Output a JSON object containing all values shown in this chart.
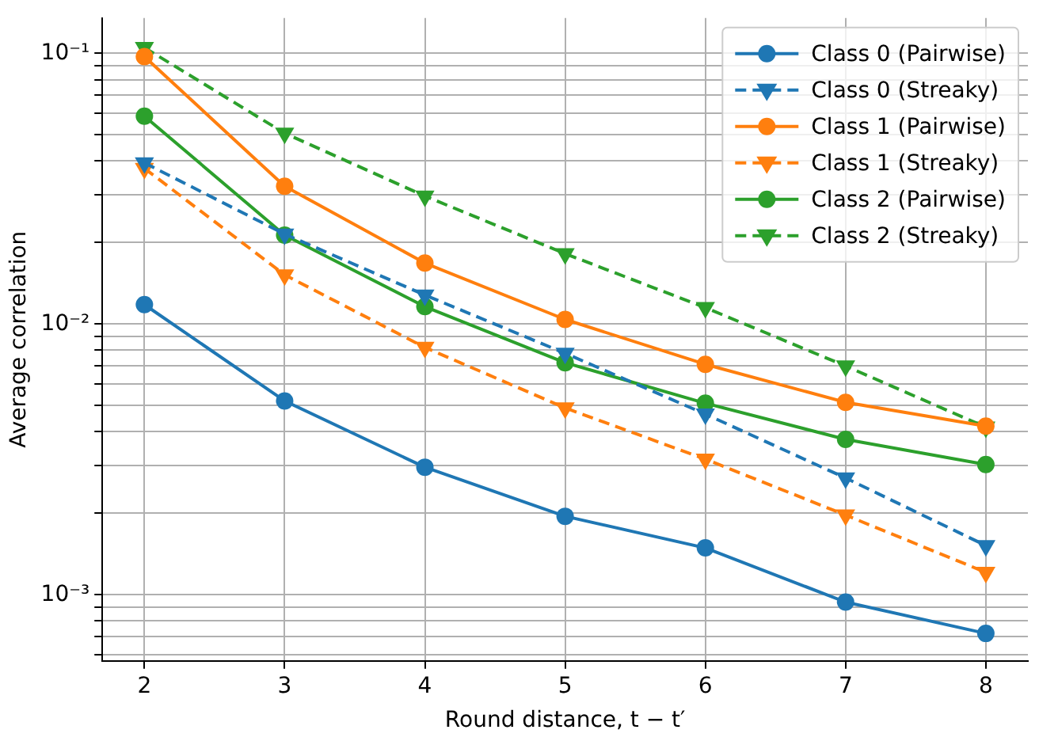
{
  "chart_data": {
    "type": "line",
    "xlabel": "Round distance, t − t′",
    "ylabel": "Average correlation",
    "log": "y",
    "grid": true,
    "legend": "top right",
    "x": [
      2,
      3,
      4,
      5,
      6,
      7,
      8
    ],
    "xlim": [
      1.7,
      8.3
    ],
    "xticks": [
      2,
      3,
      4,
      5,
      6,
      7,
      8
    ],
    "ylim": [
      0.00057,
      0.135
    ],
    "yticks": [
      {
        "value": 0.0006,
        "label": null
      },
      {
        "value": 0.0007,
        "label": null
      },
      {
        "value": 0.0008,
        "label": null
      },
      {
        "value": 0.0009,
        "label": null
      },
      {
        "value": 0.001,
        "label": "10⁻³"
      },
      {
        "value": 0.002,
        "label": null
      },
      {
        "value": 0.003,
        "label": null
      },
      {
        "value": 0.004,
        "label": null
      },
      {
        "value": 0.005,
        "label": null
      },
      {
        "value": 0.006,
        "label": null
      },
      {
        "value": 0.007,
        "label": null
      },
      {
        "value": 0.008,
        "label": null
      },
      {
        "value": 0.009,
        "label": null
      },
      {
        "value": 0.01,
        "label": "10⁻²"
      },
      {
        "value": 0.02,
        "label": null
      },
      {
        "value": 0.03,
        "label": null
      },
      {
        "value": 0.04,
        "label": null
      },
      {
        "value": 0.05,
        "label": null
      },
      {
        "value": 0.06,
        "label": null
      },
      {
        "value": 0.07,
        "label": null
      },
      {
        "value": 0.08,
        "label": null
      },
      {
        "value": 0.09,
        "label": null
      },
      {
        "value": 0.1,
        "label": "10⁻¹"
      }
    ],
    "series": [
      {
        "name": "Class 0 (Pairwise)",
        "color": "#1f77b4",
        "marker": "circle",
        "line_style": "solid",
        "values": [
          0.0118,
          0.0052,
          0.00296,
          0.00195,
          0.00149,
          0.00094,
          0.00072
        ]
      },
      {
        "name": "Class 0 (Streaky)",
        "color": "#1f77b4",
        "marker": "triangle",
        "line_style": "dashed",
        "values": [
          0.0394,
          0.0215,
          0.0128,
          0.0078,
          0.00465,
          0.0027,
          0.00152
        ]
      },
      {
        "name": "Class 1 (Pairwise)",
        "color": "#ff7f0e",
        "marker": "circle",
        "line_style": "solid",
        "values": [
          0.0973,
          0.0323,
          0.0168,
          0.0104,
          0.0071,
          0.00514,
          0.0042
        ]
      },
      {
        "name": "Class 1 (Streaky)",
        "color": "#ff7f0e",
        "marker": "triangle",
        "line_style": "dashed",
        "values": [
          0.0376,
          0.0152,
          0.0082,
          0.0049,
          0.00317,
          0.00197,
          0.00121
        ]
      },
      {
        "name": "Class 2 (Pairwise)",
        "color": "#2ca02c",
        "marker": "circle",
        "line_style": "solid",
        "values": [
          0.0586,
          0.0213,
          0.0116,
          0.0072,
          0.0051,
          0.00375,
          0.00303
        ]
      },
      {
        "name": "Class 2 (Streaky)",
        "color": "#2ca02c",
        "marker": "triangle",
        "line_style": "dashed",
        "values": [
          0.105,
          0.0507,
          0.0297,
          0.0182,
          0.0115,
          0.007,
          0.00416
        ]
      }
    ]
  }
}
